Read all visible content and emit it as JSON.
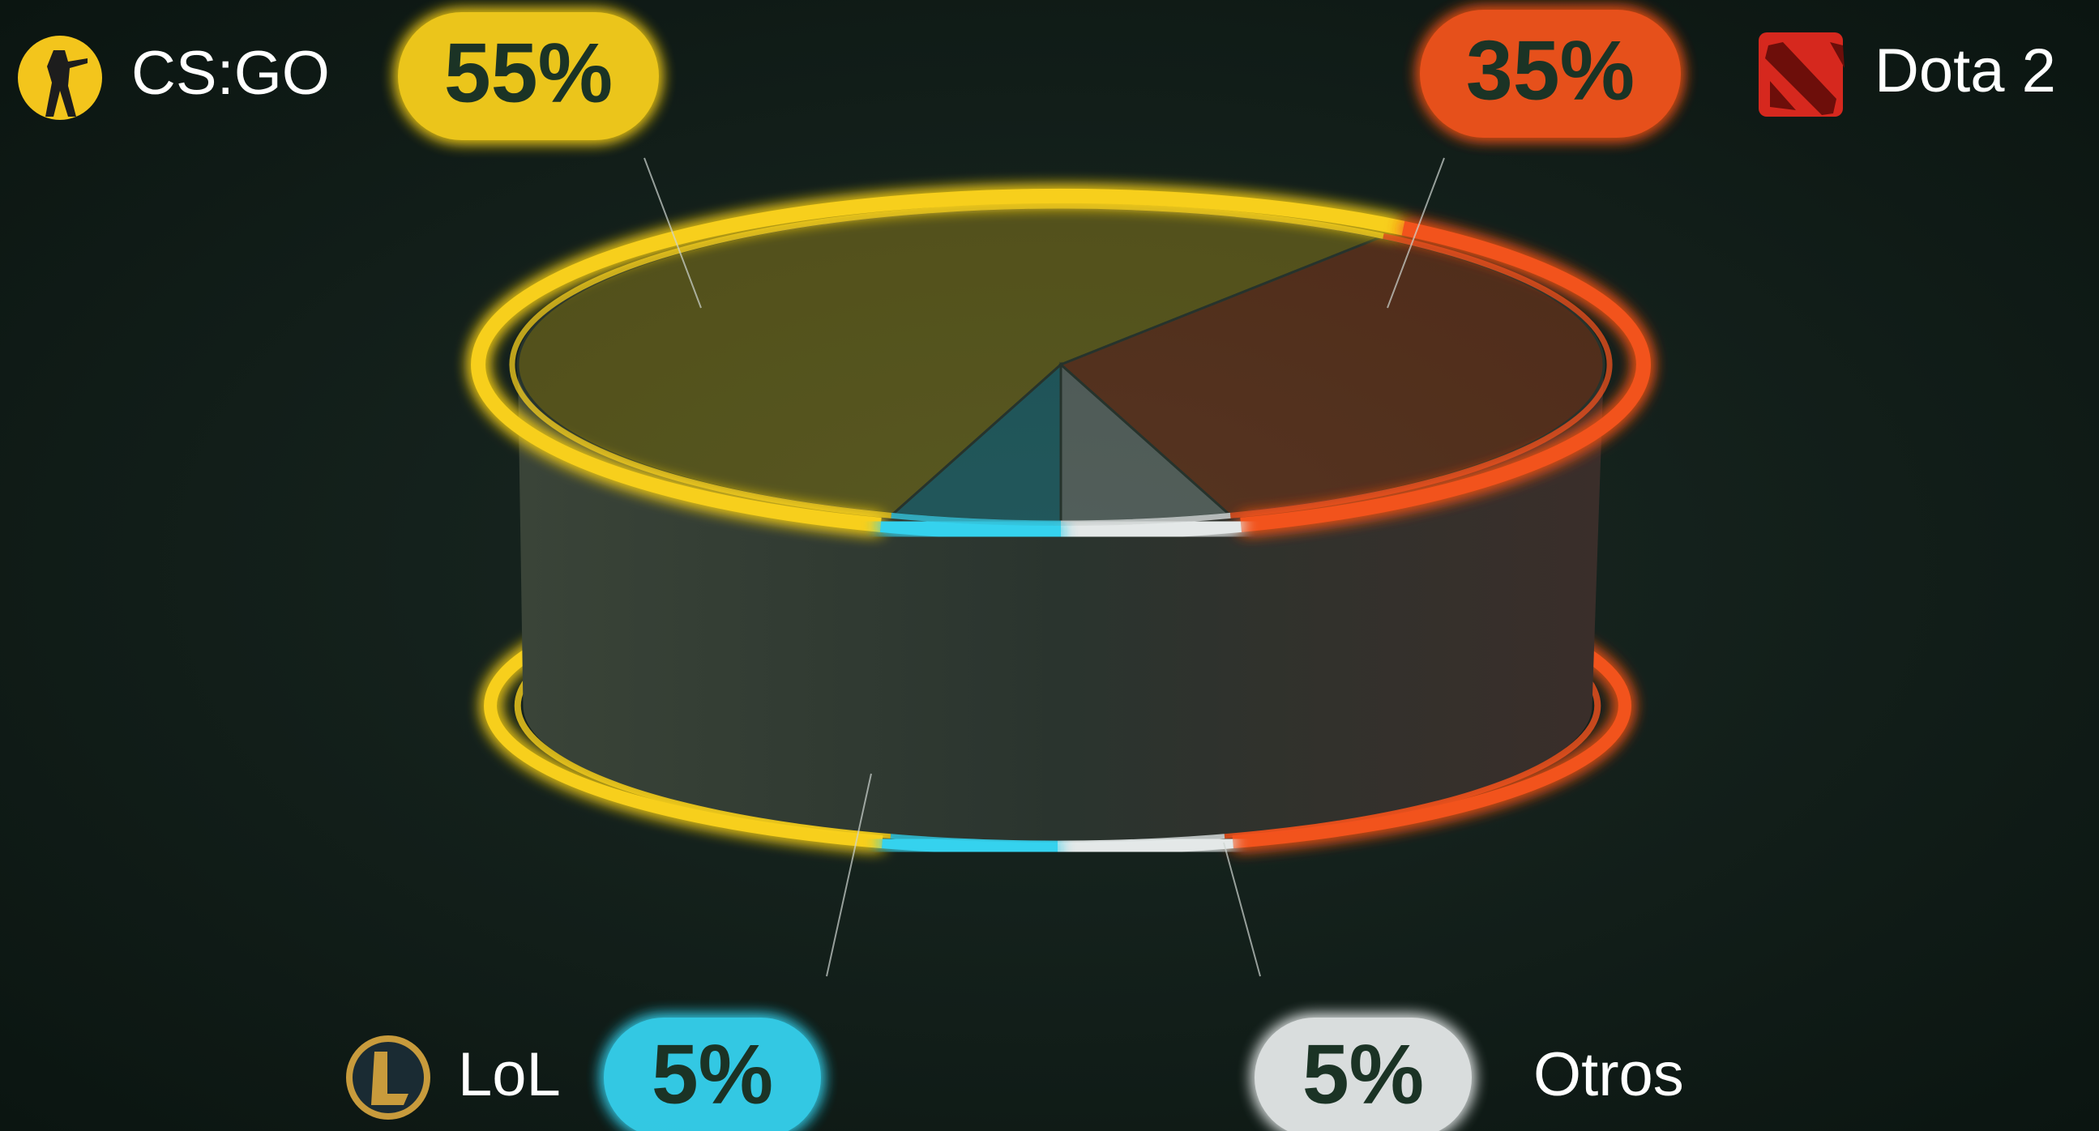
{
  "chart_data": {
    "type": "pie",
    "categories": [
      "CS:GO",
      "Dota 2",
      "Otros",
      "LoL"
    ],
    "values": [
      55,
      35,
      5,
      5
    ],
    "value_labels": [
      "55%",
      "35%",
      "5%",
      "5%"
    ],
    "colors": [
      "#f7cf1d",
      "#f2521e",
      "#e4e8e8",
      "#36d2ee"
    ]
  }
}
